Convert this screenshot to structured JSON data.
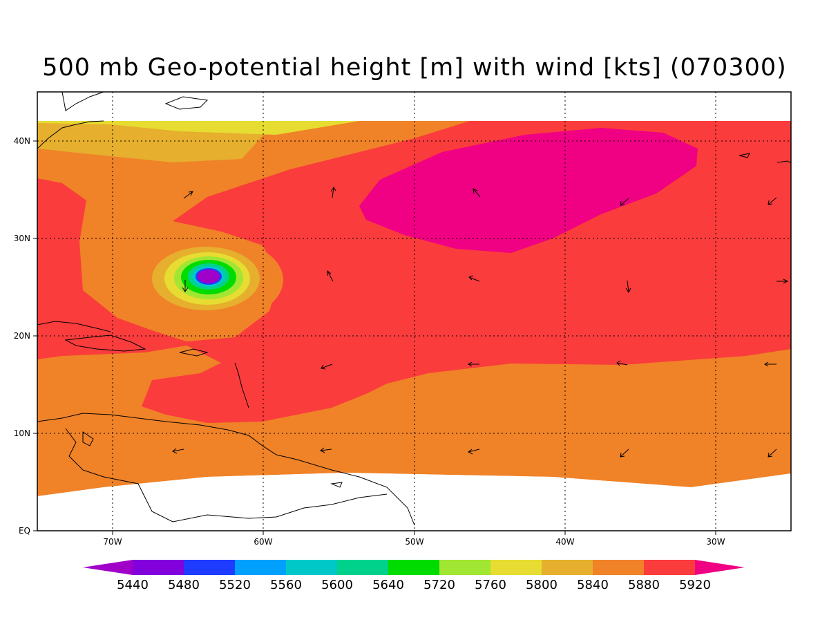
{
  "title": "500 mb Geo-potential height [m] with wind [kts] (070300)",
  "map": {
    "lon_labels": [
      "70W",
      "60W",
      "50W",
      "40W",
      "30W"
    ],
    "lat_labels": [
      "EQ",
      "10N",
      "20N",
      "30N",
      "40N"
    ]
  },
  "colorbar": {
    "labels": [
      "5440",
      "5480",
      "5520",
      "5560",
      "5600",
      "5640",
      "5720",
      "5760",
      "5800",
      "5840",
      "5880",
      "5920"
    ],
    "colors": [
      "#a000c8",
      "#8200dc",
      "#1e3cff",
      "#00a0ff",
      "#00c8c8",
      "#00d28c",
      "#00dc00",
      "#a0e632",
      "#e6dc32",
      "#e6af2d",
      "#f08228",
      "#fa3c3c",
      "#f00082"
    ]
  },
  "chart_data": {
    "type": "heatmap",
    "title": "500 mb Geo-potential height [m] with wind [kts] (070300)",
    "variable": "500 mb geopotential height",
    "units": "m",
    "overlay": "wind vectors [kts]",
    "lon_range": [
      "75W",
      "25W"
    ],
    "lat_range": [
      "EQ",
      "45N"
    ],
    "levels": [
      5440,
      5480,
      5520,
      5560,
      5600,
      5640,
      5720,
      5760,
      5800,
      5840,
      5880,
      5920
    ],
    "features": [
      {
        "name": "cyclone low",
        "center": [
          "64W",
          "26N"
        ],
        "min_level": 5440
      },
      {
        "name": "subtropical high",
        "center": [
          "43W",
          "35N"
        ],
        "min_level": 5920
      }
    ]
  }
}
